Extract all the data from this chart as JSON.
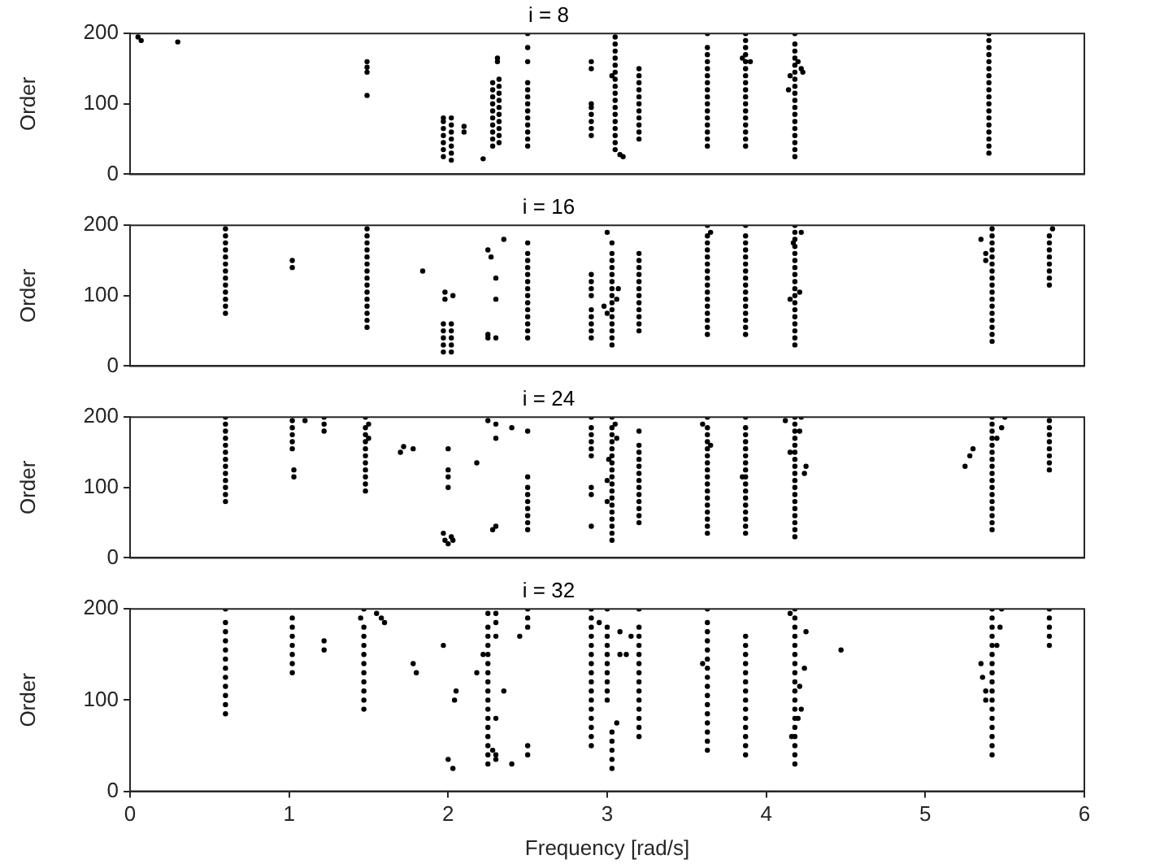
{
  "chart_data": [
    {
      "type": "scatter",
      "title": "i = 8",
      "ylabel": "Order",
      "xlim": [
        0,
        6
      ],
      "xticks": [
        0,
        1,
        2,
        3,
        4,
        5,
        6
      ],
      "ylim": [
        0,
        200
      ],
      "yticks": [
        0,
        100,
        200
      ],
      "tick_labels": "y",
      "grid": false,
      "legend": false,
      "marker": "circle",
      "series": [
        {
          "color": "#000000",
          "x": [
            0.05,
            0.07,
            0.3
          ],
          "values": [
            195,
            190,
            188
          ]
        },
        {
          "color": "#000000",
          "x": [
            1.49,
            1.49,
            1.49,
            1.49
          ],
          "values": [
            160,
            152,
            145,
            112
          ]
        },
        {
          "color": "#000000",
          "x": [
            1.97,
            1.97,
            1.97,
            1.97,
            1.97,
            1.97,
            1.97
          ],
          "values": [
            25,
            35,
            45,
            55,
            65,
            75,
            80
          ]
        },
        {
          "color": "#000000",
          "x": [
            2.02,
            2.02,
            2.02,
            2.02,
            2.02,
            2.02,
            2.02,
            2.1,
            2.1,
            2.22
          ],
          "values": [
            20,
            30,
            40,
            50,
            60,
            70,
            80,
            60,
            68,
            22
          ]
        },
        {
          "color": "#000000",
          "x": [
            2.28,
            2.28,
            2.28,
            2.28,
            2.28,
            2.28,
            2.28,
            2.28,
            2.28,
            2.28
          ],
          "values": [
            40,
            50,
            60,
            70,
            80,
            90,
            100,
            110,
            120,
            130
          ]
        },
        {
          "color": "#000000",
          "x": [
            2.32,
            2.32,
            2.32,
            2.32,
            2.32,
            2.32,
            2.32,
            2.32,
            2.32,
            2.32,
            2.31,
            2.31
          ],
          "values": [
            45,
            55,
            65,
            75,
            85,
            95,
            105,
            115,
            125,
            135,
            160,
            165
          ]
        },
        {
          "color": "#000000",
          "x": [
            2.5,
            2.5,
            2.5,
            2.5,
            2.5,
            2.5,
            2.5,
            2.5,
            2.5,
            2.5,
            2.5,
            2.5,
            2.5
          ],
          "values": [
            40,
            50,
            60,
            70,
            80,
            90,
            100,
            110,
            120,
            130,
            160,
            180,
            200
          ]
        },
        {
          "color": "#000000",
          "x": [
            2.9,
            2.9,
            2.9,
            2.9,
            2.9,
            2.9,
            2.9,
            2.9
          ],
          "values": [
            55,
            65,
            75,
            85,
            95,
            100,
            150,
            160
          ]
        },
        {
          "color": "#000000",
          "x": [
            3.05,
            3.05,
            3.05,
            3.05,
            3.05,
            3.05,
            3.05,
            3.05,
            3.05,
            3.05,
            3.05,
            3.05,
            3.05,
            3.05,
            3.05,
            3.05,
            3.05,
            3.08,
            3.1,
            3.03
          ],
          "values": [
            35,
            45,
            55,
            65,
            75,
            85,
            95,
            105,
            115,
            125,
            135,
            145,
            155,
            165,
            175,
            185,
            195,
            28,
            25,
            140
          ]
        },
        {
          "color": "#000000",
          "x": [
            3.2,
            3.2,
            3.2,
            3.2,
            3.2,
            3.2,
            3.2,
            3.2,
            3.2,
            3.2,
            3.2
          ],
          "values": [
            50,
            60,
            70,
            80,
            90,
            100,
            110,
            120,
            130,
            140,
            150
          ]
        },
        {
          "color": "#000000",
          "x": [
            3.63,
            3.63,
            3.63,
            3.63,
            3.63,
            3.63,
            3.63,
            3.63,
            3.63,
            3.63,
            3.63,
            3.63,
            3.63,
            3.63,
            3.63,
            3.63
          ],
          "values": [
            40,
            50,
            60,
            70,
            80,
            90,
            100,
            110,
            120,
            130,
            140,
            150,
            160,
            170,
            180,
            200
          ]
        },
        {
          "color": "#000000",
          "x": [
            3.87,
            3.87,
            3.87,
            3.87,
            3.87,
            3.87,
            3.87,
            3.87,
            3.87,
            3.87,
            3.87,
            3.87,
            3.87,
            3.87,
            3.87,
            3.87,
            3.87,
            3.85,
            3.9
          ],
          "values": [
            40,
            50,
            60,
            70,
            80,
            90,
            100,
            110,
            120,
            130,
            140,
            150,
            160,
            170,
            180,
            190,
            200,
            165,
            160
          ]
        },
        {
          "color": "#000000",
          "x": [
            4.18,
            4.18,
            4.18,
            4.18,
            4.18,
            4.18,
            4.18,
            4.18,
            4.18,
            4.18,
            4.18,
            4.18,
            4.18,
            4.18,
            4.18,
            4.18,
            4.18,
            4.18,
            4.15,
            4.22,
            4.14,
            4.2,
            4.23
          ],
          "values": [
            25,
            35,
            45,
            55,
            65,
            75,
            85,
            95,
            105,
            115,
            125,
            135,
            145,
            155,
            165,
            175,
            185,
            200,
            140,
            150,
            120,
            160,
            145
          ]
        },
        {
          "color": "#000000",
          "x": [
            5.4,
            5.4,
            5.4,
            5.4,
            5.4,
            5.4,
            5.4,
            5.4,
            5.4,
            5.4,
            5.4,
            5.4,
            5.4,
            5.4,
            5.4,
            5.4,
            5.4,
            5.4
          ],
          "values": [
            30,
            40,
            50,
            60,
            70,
            80,
            90,
            100,
            110,
            120,
            130,
            140,
            150,
            160,
            170,
            180,
            190,
            200
          ]
        }
      ]
    },
    {
      "type": "scatter",
      "title": "i = 16",
      "ylabel": "Order",
      "xlim": [
        0,
        6
      ],
      "xticks": [
        0,
        1,
        2,
        3,
        4,
        5,
        6
      ],
      "ylim": [
        0,
        200
      ],
      "yticks": [
        0,
        100,
        200
      ],
      "tick_labels": "y",
      "grid": false,
      "legend": false,
      "marker": "circle",
      "series": [
        {
          "color": "#000000",
          "x": [
            0.6,
            0.6,
            0.6,
            0.6,
            0.6,
            0.6,
            0.6,
            0.6,
            0.6,
            0.6,
            0.6,
            0.6,
            0.6
          ],
          "values": [
            75,
            85,
            95,
            105,
            115,
            125,
            135,
            145,
            155,
            165,
            175,
            185,
            195
          ]
        },
        {
          "color": "#000000",
          "x": [
            1.02,
            1.02
          ],
          "values": [
            150,
            140
          ]
        },
        {
          "color": "#000000",
          "x": [
            1.49,
            1.49,
            1.49,
            1.49,
            1.49,
            1.49,
            1.49,
            1.49,
            1.49,
            1.49,
            1.49,
            1.49,
            1.49,
            1.49,
            1.49
          ],
          "values": [
            55,
            65,
            75,
            85,
            95,
            105,
            115,
            125,
            135,
            145,
            155,
            165,
            175,
            185,
            195
          ]
        },
        {
          "color": "#000000",
          "x": [
            1.84,
            1.97,
            1.97,
            1.97,
            1.97,
            1.97,
            2.02,
            2.02,
            2.02,
            2.02,
            2.02,
            1.98,
            1.98,
            2.03
          ],
          "values": [
            135,
            20,
            30,
            40,
            50,
            60,
            20,
            30,
            40,
            50,
            60,
            95,
            105,
            100
          ]
        },
        {
          "color": "#000000",
          "x": [
            2.25,
            2.25,
            2.25,
            2.27,
            2.3,
            2.3,
            2.35,
            2.3
          ],
          "values": [
            40,
            45,
            165,
            155,
            125,
            95,
            180,
            40
          ]
        },
        {
          "color": "#000000",
          "x": [
            2.5,
            2.5,
            2.5,
            2.5,
            2.5,
            2.5,
            2.5,
            2.5,
            2.5,
            2.5,
            2.5,
            2.5,
            2.5,
            2.5
          ],
          "values": [
            40,
            50,
            60,
            70,
            80,
            90,
            100,
            110,
            120,
            130,
            140,
            150,
            160,
            175
          ]
        },
        {
          "color": "#000000",
          "x": [
            2.9,
            2.9,
            2.9,
            2.9,
            2.9,
            2.9,
            2.9,
            2.9,
            2.9
          ],
          "values": [
            40,
            50,
            60,
            70,
            80,
            100,
            110,
            120,
            130
          ]
        },
        {
          "color": "#000000",
          "x": [
            3.0,
            3.03,
            3.03,
            3.03,
            3.03,
            3.03,
            3.03,
            3.03,
            3.03,
            3.03,
            3.03,
            3.03,
            3.03,
            3.03,
            3.03,
            3.03,
            3.0,
            3.06,
            2.98,
            3.07
          ],
          "values": [
            190,
            30,
            40,
            50,
            60,
            70,
            80,
            90,
            100,
            110,
            120,
            130,
            140,
            150,
            160,
            175,
            75,
            95,
            85,
            110
          ]
        },
        {
          "color": "#000000",
          "x": [
            3.2,
            3.2,
            3.2,
            3.2,
            3.2,
            3.2,
            3.2,
            3.2,
            3.2,
            3.2,
            3.2,
            3.2
          ],
          "values": [
            50,
            60,
            70,
            80,
            90,
            100,
            110,
            120,
            130,
            140,
            150,
            160
          ]
        },
        {
          "color": "#000000",
          "x": [
            3.63,
            3.63,
            3.63,
            3.63,
            3.63,
            3.63,
            3.63,
            3.63,
            3.63,
            3.63,
            3.63,
            3.63,
            3.63,
            3.63,
            3.63,
            3.63,
            3.65
          ],
          "values": [
            45,
            55,
            65,
            75,
            85,
            95,
            105,
            115,
            125,
            135,
            145,
            155,
            165,
            175,
            185,
            200,
            190
          ]
        },
        {
          "color": "#000000",
          "x": [
            3.87,
            3.87,
            3.87,
            3.87,
            3.87,
            3.87,
            3.87,
            3.87,
            3.87,
            3.87,
            3.87,
            3.87,
            3.87,
            3.87,
            3.87,
            3.87
          ],
          "values": [
            45,
            55,
            65,
            75,
            85,
            95,
            105,
            115,
            125,
            135,
            145,
            155,
            165,
            175,
            185,
            200
          ]
        },
        {
          "color": "#000000",
          "x": [
            4.18,
            4.18,
            4.18,
            4.18,
            4.18,
            4.18,
            4.18,
            4.18,
            4.18,
            4.18,
            4.18,
            4.18,
            4.18,
            4.18,
            4.18,
            4.18,
            4.18,
            4.18,
            4.15,
            4.21,
            4.22,
            4.17
          ],
          "values": [
            30,
            40,
            50,
            60,
            70,
            80,
            90,
            100,
            110,
            120,
            130,
            140,
            150,
            160,
            170,
            180,
            190,
            200,
            95,
            105,
            190,
            175
          ]
        },
        {
          "color": "#000000",
          "x": [
            5.35,
            5.38,
            5.38,
            5.42,
            5.42,
            5.42,
            5.42,
            5.42,
            5.42,
            5.42,
            5.42,
            5.42,
            5.42,
            5.42,
            5.42,
            5.42,
            5.42,
            5.42,
            5.42,
            5.42
          ],
          "values": [
            180,
            160,
            150,
            35,
            45,
            55,
            65,
            75,
            85,
            95,
            105,
            115,
            125,
            135,
            145,
            155,
            165,
            175,
            185,
            195
          ]
        },
        {
          "color": "#000000",
          "x": [
            5.78,
            5.78,
            5.78,
            5.78,
            5.78,
            5.78,
            5.78,
            5.78,
            5.8
          ],
          "values": [
            115,
            125,
            135,
            145,
            155,
            165,
            175,
            185,
            195
          ]
        }
      ]
    },
    {
      "type": "scatter",
      "title": "i = 24",
      "ylabel": "Order",
      "xlim": [
        0,
        6
      ],
      "xticks": [
        0,
        1,
        2,
        3,
        4,
        5,
        6
      ],
      "ylim": [
        0,
        200
      ],
      "yticks": [
        0,
        100,
        200
      ],
      "tick_labels": "y",
      "grid": false,
      "legend": false,
      "marker": "circle",
      "series": [
        {
          "color": "#000000",
          "x": [
            0.6,
            0.6,
            0.6,
            0.6,
            0.6,
            0.6,
            0.6,
            0.6,
            0.6,
            0.6,
            0.6,
            0.6,
            0.6
          ],
          "values": [
            80,
            90,
            100,
            110,
            120,
            130,
            140,
            150,
            160,
            170,
            180,
            190,
            200
          ]
        },
        {
          "color": "#000000",
          "x": [
            1.02,
            1.02,
            1.02,
            1.02,
            1.02,
            1.03,
            1.03,
            1.1,
            1.22,
            1.22,
            1.22
          ],
          "values": [
            155,
            165,
            175,
            185,
            195,
            125,
            115,
            195,
            180,
            190,
            200
          ]
        },
        {
          "color": "#000000",
          "x": [
            1.48,
            1.48,
            1.48,
            1.48,
            1.48,
            1.48,
            1.48,
            1.48,
            1.48,
            1.48,
            1.48,
            1.5,
            1.5
          ],
          "values": [
            95,
            105,
            115,
            125,
            135,
            145,
            155,
            165,
            175,
            185,
            200,
            190,
            170
          ]
        },
        {
          "color": "#000000",
          "x": [
            1.7,
            1.72,
            1.78,
            1.97,
            1.98,
            2.0,
            2.02,
            2.03,
            2.0,
            2.0,
            2.0,
            2.0
          ],
          "values": [
            150,
            158,
            155,
            35,
            25,
            20,
            30,
            25,
            100,
            115,
            125,
            155
          ]
        },
        {
          "color": "#000000",
          "x": [
            2.18,
            2.3,
            2.25,
            2.3,
            2.4,
            2.5,
            2.28,
            2.3
          ],
          "values": [
            135,
            170,
            195,
            190,
            185,
            180,
            40,
            45
          ]
        },
        {
          "color": "#000000",
          "x": [
            2.5,
            2.5,
            2.5,
            2.5,
            2.5,
            2.5,
            2.5,
            2.5
          ],
          "values": [
            40,
            50,
            60,
            70,
            80,
            90,
            100,
            115
          ]
        },
        {
          "color": "#000000",
          "x": [
            2.9,
            2.9,
            2.9,
            2.9,
            2.9,
            2.9,
            2.9,
            2.9,
            2.9
          ],
          "values": [
            145,
            155,
            165,
            175,
            185,
            200,
            100,
            90,
            45
          ]
        },
        {
          "color": "#000000",
          "x": [
            3.03,
            3.03,
            3.03,
            3.03,
            3.03,
            3.03,
            3.03,
            3.03,
            3.03,
            3.03,
            3.03,
            3.03,
            3.03,
            3.03,
            3.03,
            3.03,
            3.03,
            3.03,
            3.0,
            3.06,
            3.0,
            3.05,
            3.01
          ],
          "values": [
            25,
            35,
            45,
            55,
            65,
            75,
            85,
            95,
            105,
            115,
            125,
            135,
            145,
            155,
            165,
            175,
            185,
            200,
            110,
            170,
            80,
            190,
            140
          ]
        },
        {
          "color": "#000000",
          "x": [
            3.2,
            3.2,
            3.2,
            3.2,
            3.2,
            3.2,
            3.2,
            3.2,
            3.2,
            3.2,
            3.2,
            3.2,
            3.2
          ],
          "values": [
            50,
            60,
            70,
            80,
            90,
            100,
            110,
            120,
            130,
            140,
            150,
            160,
            180
          ]
        },
        {
          "color": "#000000",
          "x": [
            3.63,
            3.63,
            3.63,
            3.63,
            3.63,
            3.63,
            3.63,
            3.63,
            3.63,
            3.63,
            3.63,
            3.63,
            3.63,
            3.63,
            3.63,
            3.63,
            3.63,
            3.6,
            3.65
          ],
          "values": [
            35,
            45,
            55,
            65,
            75,
            85,
            95,
            105,
            115,
            125,
            135,
            145,
            155,
            165,
            175,
            185,
            200,
            190,
            160
          ]
        },
        {
          "color": "#000000",
          "x": [
            3.87,
            3.87,
            3.87,
            3.87,
            3.87,
            3.87,
            3.87,
            3.87,
            3.87,
            3.87,
            3.87,
            3.87,
            3.87,
            3.87,
            3.87,
            3.87,
            3.87,
            3.85
          ],
          "values": [
            35,
            45,
            55,
            65,
            75,
            85,
            95,
            105,
            115,
            125,
            135,
            145,
            155,
            165,
            175,
            185,
            200,
            115
          ]
        },
        {
          "color": "#000000",
          "x": [
            4.18,
            4.18,
            4.18,
            4.18,
            4.18,
            4.18,
            4.18,
            4.18,
            4.18,
            4.18,
            4.18,
            4.18,
            4.18,
            4.18,
            4.18,
            4.18,
            4.18,
            4.18,
            4.12,
            4.15,
            4.22,
            4.25,
            4.24,
            4.21
          ],
          "values": [
            30,
            40,
            50,
            60,
            70,
            80,
            90,
            100,
            110,
            120,
            130,
            140,
            150,
            160,
            170,
            180,
            190,
            200,
            195,
            150,
            200,
            130,
            120,
            180
          ]
        },
        {
          "color": "#000000",
          "x": [
            5.25,
            5.28,
            5.3,
            5.42,
            5.42,
            5.42,
            5.42,
            5.42,
            5.42,
            5.42,
            5.42,
            5.42,
            5.42,
            5.42,
            5.42,
            5.42,
            5.42,
            5.42,
            5.42,
            5.42,
            5.45,
            5.48,
            5.5
          ],
          "values": [
            130,
            145,
            155,
            40,
            50,
            60,
            70,
            80,
            90,
            100,
            110,
            120,
            130,
            140,
            150,
            160,
            170,
            180,
            190,
            200,
            170,
            185,
            200
          ]
        },
        {
          "color": "#000000",
          "x": [
            5.78,
            5.78,
            5.78,
            5.78,
            5.78,
            5.78,
            5.78,
            5.78
          ],
          "values": [
            125,
            135,
            145,
            155,
            165,
            175,
            185,
            195
          ]
        }
      ]
    },
    {
      "type": "scatter",
      "title": "i = 32",
      "ylabel": "Order",
      "xlabel": "Frequency [rad/s]",
      "xlim": [
        0,
        6
      ],
      "xticks": [
        0,
        1,
        2,
        3,
        4,
        5,
        6
      ],
      "ylim": [
        0,
        200
      ],
      "yticks": [
        0,
        100,
        200
      ],
      "grid": false,
      "legend": false,
      "marker": "circle",
      "series": [
        {
          "color": "#000000",
          "x": [
            0.6,
            0.6,
            0.6,
            0.6,
            0.6,
            0.6,
            0.6,
            0.6,
            0.6,
            0.6,
            0.6,
            0.6
          ],
          "values": [
            85,
            95,
            105,
            115,
            125,
            135,
            145,
            155,
            165,
            175,
            185,
            200
          ]
        },
        {
          "color": "#000000",
          "x": [
            1.02,
            1.02,
            1.02,
            1.02,
            1.02,
            1.02,
            1.02,
            1.22,
            1.22
          ],
          "values": [
            130,
            140,
            150,
            160,
            170,
            180,
            190,
            155,
            165
          ]
        },
        {
          "color": "#000000",
          "x": [
            1.47,
            1.47,
            1.47,
            1.47,
            1.47,
            1.47,
            1.47,
            1.47,
            1.47,
            1.47,
            1.47,
            1.45,
            1.55,
            1.58,
            1.6
          ],
          "values": [
            90,
            100,
            110,
            120,
            130,
            140,
            150,
            160,
            170,
            180,
            200,
            190,
            195,
            190,
            185
          ]
        },
        {
          "color": "#000000",
          "x": [
            1.78,
            1.8,
            1.97,
            2.05,
            2.04,
            2.0,
            2.03,
            2.18
          ],
          "values": [
            140,
            130,
            160,
            110,
            100,
            35,
            25,
            130
          ]
        },
        {
          "color": "#000000",
          "x": [
            2.22,
            2.25,
            2.25,
            2.25,
            2.25,
            2.25,
            2.25,
            2.25,
            2.25,
            2.25,
            2.25,
            2.25,
            2.25,
            2.25,
            2.25,
            2.25,
            2.25,
            2.25,
            2.3,
            2.3,
            2.3,
            2.3,
            2.3,
            2.35,
            2.28,
            2.4,
            2.3
          ],
          "values": [
            150,
            30,
            40,
            50,
            60,
            70,
            80,
            90,
            100,
            110,
            120,
            130,
            140,
            150,
            160,
            170,
            180,
            195,
            40,
            80,
            170,
            185,
            195,
            110,
            45,
            30,
            35
          ]
        },
        {
          "color": "#000000",
          "x": [
            2.5,
            2.5,
            2.5,
            2.5,
            2.5,
            2.45
          ],
          "values": [
            40,
            50,
            180,
            190,
            200,
            170
          ]
        },
        {
          "color": "#000000",
          "x": [
            2.9,
            2.9,
            2.9,
            2.9,
            2.9,
            2.9,
            2.9,
            2.9,
            2.9,
            2.9,
            2.9,
            2.9,
            2.9,
            2.9,
            2.9,
            2.9
          ],
          "values": [
            50,
            60,
            70,
            80,
            90,
            100,
            110,
            120,
            130,
            140,
            150,
            160,
            170,
            180,
            190,
            200
          ]
        },
        {
          "color": "#000000",
          "x": [
            3.0,
            3.0,
            3.0,
            3.0,
            3.0,
            3.0,
            3.0,
            3.0,
            3.0,
            3.0,
            3.03,
            3.03,
            3.03,
            3.03,
            3.03,
            3.06,
            3.08,
            3.08,
            2.95
          ],
          "values": [
            100,
            110,
            120,
            130,
            140,
            150,
            160,
            170,
            180,
            200,
            25,
            35,
            45,
            55,
            65,
            75,
            150,
            175,
            185
          ]
        },
        {
          "color": "#000000",
          "x": [
            3.2,
            3.2,
            3.2,
            3.2,
            3.2,
            3.2,
            3.2,
            3.2,
            3.2,
            3.2,
            3.2,
            3.2,
            3.2,
            3.2,
            3.15,
            3.12
          ],
          "values": [
            60,
            70,
            80,
            90,
            100,
            110,
            120,
            130,
            140,
            150,
            160,
            170,
            180,
            200,
            170,
            150
          ]
        },
        {
          "color": "#000000",
          "x": [
            3.6,
            3.63,
            3.63,
            3.63,
            3.63,
            3.63,
            3.63,
            3.63,
            3.63,
            3.63,
            3.63,
            3.63,
            3.63,
            3.63,
            3.63,
            3.63,
            3.63
          ],
          "values": [
            140,
            45,
            55,
            65,
            75,
            85,
            95,
            105,
            115,
            125,
            135,
            145,
            155,
            165,
            175,
            185,
            200
          ]
        },
        {
          "color": "#000000",
          "x": [
            3.87,
            3.87,
            3.87,
            3.87,
            3.87,
            3.87,
            3.87,
            3.87,
            3.87,
            3.87,
            3.87,
            3.87,
            3.87,
            3.87
          ],
          "values": [
            40,
            50,
            60,
            70,
            80,
            90,
            100,
            110,
            120,
            130,
            140,
            150,
            160,
            170
          ]
        },
        {
          "color": "#000000",
          "x": [
            4.18,
            4.18,
            4.18,
            4.18,
            4.18,
            4.18,
            4.18,
            4.18,
            4.18,
            4.18,
            4.18,
            4.18,
            4.18,
            4.18,
            4.18,
            4.18,
            4.18,
            4.18,
            4.15,
            4.2,
            4.22,
            4.25,
            4.24,
            4.16,
            4.21,
            4.47
          ],
          "values": [
            30,
            40,
            50,
            60,
            70,
            80,
            90,
            100,
            110,
            120,
            130,
            140,
            150,
            160,
            170,
            180,
            190,
            200,
            195,
            80,
            90,
            175,
            135,
            60,
            115,
            155
          ]
        },
        {
          "color": "#000000",
          "x": [
            5.35,
            5.36,
            5.38,
            5.38,
            5.42,
            5.42,
            5.42,
            5.42,
            5.42,
            5.42,
            5.42,
            5.42,
            5.42,
            5.42,
            5.42,
            5.42,
            5.42,
            5.42,
            5.42,
            5.42,
            5.42,
            5.45,
            5.47,
            5.48
          ],
          "values": [
            140,
            125,
            110,
            100,
            40,
            50,
            60,
            70,
            80,
            90,
            100,
            110,
            120,
            130,
            140,
            150,
            160,
            170,
            180,
            190,
            200,
            160,
            180,
            200
          ]
        },
        {
          "color": "#000000",
          "x": [
            5.78,
            5.78,
            5.78,
            5.78,
            5.78
          ],
          "values": [
            160,
            170,
            180,
            190,
            200
          ]
        }
      ]
    }
  ]
}
